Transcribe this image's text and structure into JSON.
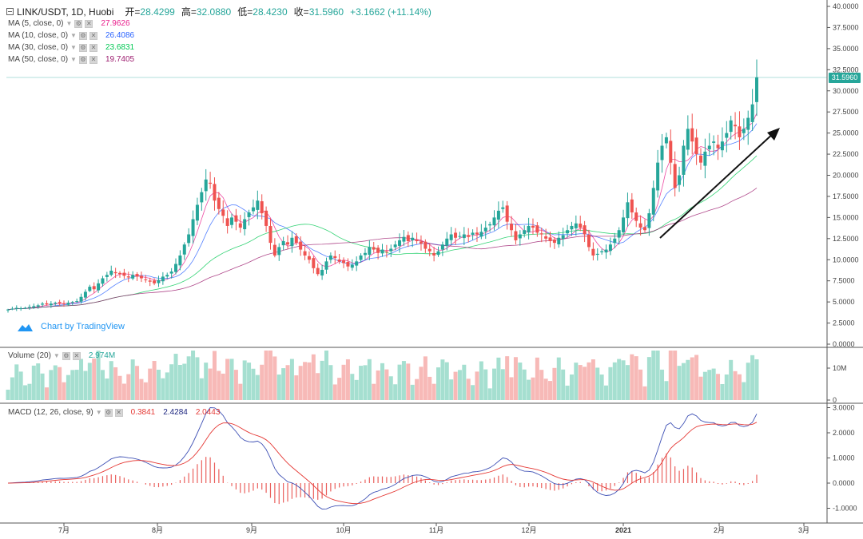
{
  "header": {
    "symbol": "LINK/USDT, 1D, Huobi",
    "open_label": "开",
    "open": "28.4299",
    "high_label": "高",
    "high": "32.0880",
    "low_label": "低",
    "low": "28.4230",
    "close_label": "收",
    "close": "31.5960",
    "change": "+3.1662 (+11.14%)"
  },
  "indicators": [
    {
      "label": "MA (5, close, 0)",
      "value": "27.9626",
      "color": "#e91e8c"
    },
    {
      "label": "MA (10, close, 0)",
      "value": "26.4086",
      "color": "#2962ff"
    },
    {
      "label": "MA (30, close, 0)",
      "value": "23.6831",
      "color": "#00c853"
    },
    {
      "label": "MA (50, close, 0)",
      "value": "19.7405",
      "color": "#9c1b6e"
    }
  ],
  "volume_legend": {
    "label": "Volume (20)",
    "value": "2.974M",
    "color": "#26a69a"
  },
  "macd_legend": {
    "label": "MACD (12, 26, close, 9)",
    "v1": "0.3841",
    "v2": "2.4284",
    "v3": "2.0443",
    "c1": "#e53935",
    "c2": "#1a237e",
    "c3": "#e53935"
  },
  "watermark": "Chart by TradingView",
  "last_price_tag": "31.5960",
  "colors": {
    "up": "#26a69a",
    "down": "#ef5350",
    "vol_up": "#a5dfd0",
    "vol_down": "#f7b9b7",
    "ma5": "#e91e8c",
    "ma10": "#2962ff",
    "ma30": "#00c853",
    "ma50": "#9c1b6e"
  },
  "chart_data": {
    "type": "candlestick",
    "price_axis": {
      "min": 0,
      "max": 40,
      "ticks": [
        "40.0000",
        "37.5000",
        "35.0000",
        "32.5000",
        "30.0000",
        "27.5000",
        "25.0000",
        "22.5000",
        "20.0000",
        "17.5000",
        "15.0000",
        "12.5000",
        "10.0000",
        "7.5000",
        "5.0000",
        "2.5000",
        "0.0000"
      ]
    },
    "volume_axis": {
      "ticks": [
        "10M",
        "0"
      ]
    },
    "macd_axis": {
      "min": -1.5,
      "max": 3.0,
      "ticks": [
        "3.0000",
        "2.0000",
        "1.0000",
        "0.0000",
        "-1.0000"
      ]
    },
    "time_axis": {
      "labels": [
        "7月",
        "8月",
        "9月",
        "10月",
        "11月",
        "12月",
        "2021",
        "2月",
        "3月"
      ]
    },
    "close_series": [
      4.1,
      4.2,
      4.3,
      4.25,
      4.3,
      4.4,
      4.5,
      4.6,
      4.8,
      4.7,
      4.8,
      4.9,
      4.85,
      4.75,
      4.9,
      5.0,
      5.1,
      5.6,
      6.2,
      6.8,
      6.5,
      7.2,
      7.8,
      8.2,
      8.7,
      8.4,
      8.3,
      8.1,
      7.9,
      8.2,
      8.0,
      7.8,
      7.6,
      7.4,
      7.2,
      7.6,
      8.0,
      8.2,
      8.6,
      9.5,
      10.5,
      11.8,
      13.0,
      14.8,
      16.5,
      18.0,
      19.5,
      19.0,
      17.0,
      16.0,
      15.2,
      14.0,
      15.0,
      14.5,
      13.8,
      14.8,
      15.6,
      16.2,
      17.0,
      15.5,
      14.0,
      12.0,
      10.5,
      11.5,
      12.2,
      11.8,
      12.6,
      12.0,
      11.2,
      10.5,
      10.0,
      9.0,
      8.3,
      8.8,
      9.8,
      10.5,
      10.2,
      9.8,
      9.6,
      9.2,
      9.4,
      9.8,
      10.5,
      10.8,
      11.5,
      11.2,
      10.8,
      11.2,
      10.9,
      11.3,
      11.8,
      12.3,
      12.7,
      12.2,
      12.6,
      12.2,
      11.9,
      11.3,
      11.0,
      10.5,
      11.0,
      11.8,
      12.5,
      13.0,
      12.6,
      12.8,
      13.0,
      12.7,
      13.2,
      13.0,
      13.3,
      13.8,
      14.2,
      15.0,
      15.8,
      16.2,
      14.5,
      13.5,
      12.3,
      13.0,
      13.5,
      14.0,
      13.8,
      13.2,
      13.0,
      12.5,
      12.2,
      12.0,
      12.6,
      12.9,
      13.5,
      14.0,
      14.3,
      13.8,
      13.0,
      11.5,
      10.5,
      10.7,
      11.0,
      11.2,
      11.8,
      12.5,
      13.5,
      15.0,
      16.8,
      15.6,
      14.6,
      13.8,
      13.5,
      15.5,
      18.5,
      21.5,
      23.5,
      24.5,
      21.5,
      18.5,
      20.0,
      23.5,
      25.5,
      24.0,
      22.5,
      21.5,
      22.8,
      23.5,
      24.0,
      23.2,
      24.0,
      25.0,
      26.5,
      25.8,
      24.5,
      25.5,
      26.8,
      28.4,
      31.6
    ]
  }
}
